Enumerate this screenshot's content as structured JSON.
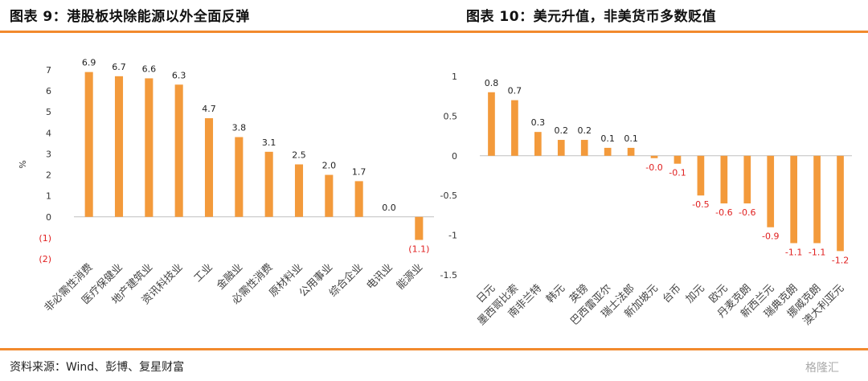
{
  "header": {
    "left_title": "图表 9：港股板块除能源以外全面反弹",
    "right_title": "图表 10：美元升值，非美货币多数贬值"
  },
  "footer": {
    "source": "资料来源：Wind、彭博、复星财富",
    "watermark": "格隆汇"
  },
  "chart_data": [
    {
      "type": "bar",
      "ylabel": "%",
      "ylim": [
        -2,
        7
      ],
      "y_tick_labels": [
        "(2)",
        "(1)",
        "0",
        "1",
        "2",
        "3",
        "4",
        "5",
        "6",
        "7"
      ],
      "categories": [
        "非必需性消费",
        "医疗保健业",
        "地产建筑业",
        "资讯科技业",
        "工业",
        "金融业",
        "必需性消费",
        "原材料业",
        "公用事业",
        "综合企业",
        "电讯业",
        "能源业"
      ],
      "values": [
        6.9,
        6.7,
        6.6,
        6.3,
        4.7,
        3.8,
        3.1,
        2.5,
        2.0,
        1.7,
        0.0,
        -1.1
      ],
      "data_labels": [
        "6.9",
        "6.7",
        "6.6",
        "6.3",
        "4.7",
        "3.8",
        "3.1",
        "2.5",
        "2.0",
        "1.7",
        "0.0",
        "(1.1)"
      ],
      "colors": {
        "bar": "#f39a3b",
        "negative_label": "#e02020"
      },
      "grid": false
    },
    {
      "type": "bar",
      "ylim": [
        -1.5,
        1
      ],
      "y_tick_labels": [
        "-1.5",
        "-1",
        "-0.5",
        "0",
        "0.5",
        "1"
      ],
      "categories": [
        "日元",
        "墨西哥比索",
        "南非兰特",
        "韩元",
        "英镑",
        "巴西雷亚尔",
        "瑞士法郎",
        "新加坡元",
        "台币",
        "加元",
        "欧元",
        "丹麦克朗",
        "新西兰元",
        "瑞典克朗",
        "挪威克朗",
        "澳大利亚元"
      ],
      "values": [
        0.8,
        0.7,
        0.3,
        0.2,
        0.2,
        0.1,
        0.1,
        -0.03,
        -0.1,
        -0.5,
        -0.6,
        -0.6,
        -0.9,
        -1.1,
        -1.1,
        -1.2
      ],
      "data_labels": [
        "0.8",
        "0.7",
        "0.3",
        "0.2",
        "0.2",
        "0.1",
        "0.1",
        "-0.0",
        "-0.1",
        "-0.5",
        "-0.6",
        "-0.6",
        "-0.9",
        "-1.1",
        "-1.1",
        "-1.2"
      ],
      "colors": {
        "bar": "#f39a3b",
        "negative_label": "#e02020"
      },
      "grid": false
    }
  ]
}
